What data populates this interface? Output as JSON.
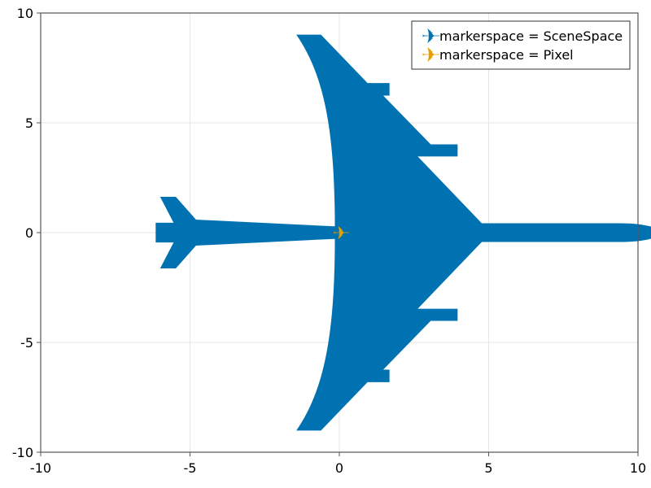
{
  "chart_data": {
    "type": "scatter",
    "title": "",
    "xlabel": "",
    "ylabel": "",
    "xlim": [
      -10,
      10
    ],
    "ylim": [
      -10,
      10
    ],
    "xticks": [
      -10,
      -5,
      0,
      5,
      10
    ],
    "yticks": [
      -10,
      -5,
      0,
      5,
      10
    ],
    "xtick_labels": [
      "-10",
      "-5",
      "0",
      "5",
      "10"
    ],
    "ytick_labels": [
      "-10",
      "-5",
      "0",
      "5",
      "10"
    ],
    "grid": true,
    "legend_position": "top-right",
    "series": [
      {
        "name": "markerspace = SceneSpace",
        "marker": "airplane",
        "color": "#0072b2",
        "points": [
          [
            0,
            0
          ]
        ],
        "marker_size_data_units": 15
      },
      {
        "name": "markerspace = Pixel",
        "marker": "airplane",
        "color": "#e69f00",
        "points": [
          [
            0,
            0
          ]
        ]
      }
    ]
  }
}
